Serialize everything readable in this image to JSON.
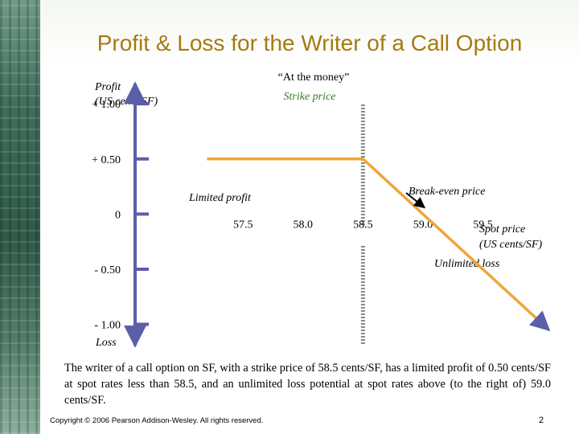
{
  "title": "Profit & Loss for the Writer of a Call Option",
  "chart_data": {
    "type": "line",
    "y_axis_label": [
      "Profit",
      "(US cents/SF)"
    ],
    "y_axis_bottom_label": "Loss",
    "y_ticks": [
      {
        "value": 1.0,
        "label": "+ 1.00"
      },
      {
        "value": 0.5,
        "label": "+ 0.50"
      },
      {
        "value": 0.0,
        "label": "0"
      },
      {
        "value": -0.5,
        "label": "- 0.50"
      },
      {
        "value": -1.0,
        "label": "- 1.00"
      }
    ],
    "x_ticks": [
      {
        "value": 57.5,
        "label": "57.5"
      },
      {
        "value": 58.0,
        "label": "58.0"
      },
      {
        "value": 58.5,
        "label": "58.5"
      },
      {
        "value": 59.0,
        "label": "59.0"
      },
      {
        "value": 59.5,
        "label": "59.5"
      }
    ],
    "x_axis_label": [
      "Spot price",
      "(US cents/SF)"
    ],
    "xlim": [
      56.6,
      60.1
    ],
    "ylim": [
      -1.2,
      1.3
    ],
    "series": [
      {
        "x": [
          57.2,
          58.5,
          60.05
        ],
        "y": [
          0.5,
          0.5,
          -1.05
        ],
        "color": "#f0a53a"
      }
    ],
    "strike_price": 58.5,
    "break_even": 59.0,
    "annotations": {
      "strike_top": "“At the money”",
      "strike_bottom": "Strike price",
      "limited_profit": "Limited profit",
      "break_even": "Break-even price",
      "unlimited_loss": "Unlimited loss"
    },
    "colors": {
      "axis": "#5a5fa8",
      "strike_line": "#8a8a8a",
      "payoff": "#f0a53a",
      "arrow": "#000000"
    }
  },
  "caption": "The writer of a call option on SF, with a strike price of 58.5 cents/SF, has a limited profit of 0.50 cents/SF at spot rates less than 58.5, and an unlimited loss potential at spot rates above (to the right of) 59.0 cents/SF.",
  "footer": {
    "copyright": "Copyright © 2006 Pearson Addison-Wesley. All rights reserved.",
    "page_number": "2"
  }
}
